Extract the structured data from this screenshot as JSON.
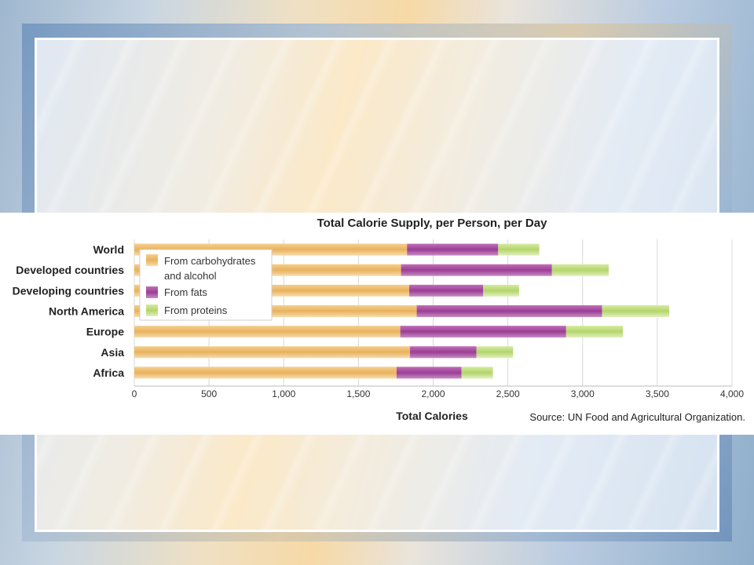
{
  "chart_data": {
    "type": "bar",
    "stacked": true,
    "orientation": "horizontal",
    "title": "Total Calorie Supply, per Person, per Day",
    "xlabel": "Total Calories",
    "source": "Source: UN Food and Agricultural Organization.",
    "xlim": [
      0,
      4000
    ],
    "xticks": [
      "0",
      "500",
      "1,000",
      "1,500",
      "2,000",
      "2,500",
      "3,000",
      "3,500",
      "4,000"
    ],
    "grid": "vertical",
    "legend_position": "top-left",
    "categories": [
      "World",
      "Developed countries",
      "Developing countries",
      "North America",
      "Europe",
      "Asia",
      "Africa"
    ],
    "series": [
      {
        "name": "From carbohydrates and alcohol",
        "legend_lines": [
          "From carbohydrates",
          "and alcohol"
        ],
        "color": "#e9b25d",
        "values": [
          1825,
          1785,
          1840,
          1890,
          1780,
          1845,
          1755
        ]
      },
      {
        "name": "From fats",
        "legend_lines": [
          "From fats"
        ],
        "color": "#9a3e95",
        "values": [
          610,
          1010,
          495,
          1240,
          1110,
          445,
          435
        ]
      },
      {
        "name": "From proteins",
        "legend_lines": [
          "From proteins"
        ],
        "color": "#b3d56c",
        "values": [
          275,
          380,
          240,
          450,
          380,
          245,
          210
        ]
      }
    ]
  }
}
